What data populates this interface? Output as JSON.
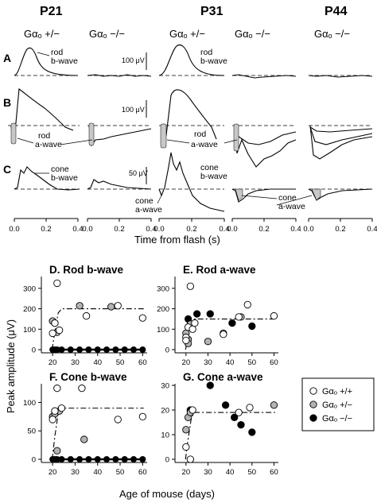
{
  "top": {
    "ages": [
      "P21",
      "P31",
      "P44"
    ],
    "genotypes": [
      "Gαₒ +/−",
      "Gαₒ −/−",
      "Gαₒ +/−",
      "Gαₒ −/−",
      "Gαₒ −/−"
    ],
    "rows": [
      "A",
      "B",
      "C"
    ],
    "scales": [
      "100 μV",
      "100 μV",
      "50 μV"
    ],
    "labels": {
      "rod_b_1": "rod",
      "rod_b_2": "b-wave",
      "rod_b2_1": "rod",
      "rod_b2_2": "b-wave",
      "rod_a_1": "rod",
      "rod_a_2": "a-wave",
      "rod_a2_1": "rod",
      "rod_a2_2": "a-wave",
      "cone_b_1": "cone",
      "cone_b_2": "b-wave",
      "cone_b2_1": "cone",
      "cone_b2_2": "b-wave",
      "cone_a_1": "cone",
      "cone_a_2": "a-wave",
      "cone_a2_1": "cone",
      "cone_a2_2": "a-wave"
    },
    "ticks": [
      "0.0",
      "0.2",
      "0.4"
    ],
    "xlabel": "Time from flash (s)"
  },
  "panels": [
    {
      "id": "D",
      "title": "D. Rod b-wave",
      "ylim": [
        0,
        350
      ],
      "yticks": [
        "0",
        "100",
        "200",
        "300"
      ],
      "plus_plus": [
        [
          20,
          80
        ],
        [
          21,
          130
        ],
        [
          22,
          325
        ],
        [
          23,
          95
        ],
        [
          35,
          165
        ],
        [
          49,
          215
        ],
        [
          60,
          155
        ]
      ],
      "plus_minus": [
        [
          20,
          140
        ],
        [
          21,
          130
        ],
        [
          22,
          85
        ],
        [
          32,
          215
        ],
        [
          46,
          210
        ]
      ],
      "fit_plateau": 200
    },
    {
      "id": "E",
      "title": "E. Rod a-wave",
      "ylim": [
        0,
        350
      ],
      "yticks": [
        "0",
        "100",
        "200",
        "300"
      ],
      "plus_plus": [
        [
          20,
          60
        ],
        [
          20,
          45
        ],
        [
          21,
          110
        ],
        [
          22,
          310
        ],
        [
          23,
          100
        ],
        [
          24,
          130
        ],
        [
          37,
          75
        ],
        [
          44,
          160
        ],
        [
          48,
          220
        ],
        [
          60,
          165
        ]
      ],
      "plus_minus": [
        [
          20,
          80
        ],
        [
          21,
          50
        ],
        [
          21,
          30
        ],
        [
          22,
          125
        ],
        [
          30,
          40
        ],
        [
          37,
          80
        ],
        [
          45,
          160
        ]
      ],
      "minus_minus": [
        [
          21,
          150
        ],
        [
          25,
          175
        ],
        [
          31,
          175
        ],
        [
          41,
          130
        ],
        [
          50,
          115
        ]
      ],
      "fit_plateau": 150
    },
    {
      "id": "F",
      "title": "F. Cone b-wave",
      "ylim": [
        0,
        130
      ],
      "yticks": [
        "0",
        "50",
        "100"
      ],
      "plus_plus": [
        [
          20,
          70
        ],
        [
          21,
          85
        ],
        [
          22,
          125
        ],
        [
          24,
          90
        ],
        [
          33,
          125
        ],
        [
          49,
          70
        ],
        [
          60,
          75
        ]
      ],
      "plus_minus": [
        [
          20,
          75
        ],
        [
          21,
          80
        ],
        [
          22,
          15
        ],
        [
          23,
          85
        ],
        [
          34,
          35
        ]
      ],
      "fit_plateau": 90
    },
    {
      "id": "G",
      "title": "G. Cone a-wave",
      "ylim": [
        0,
        30
      ],
      "yticks": [
        "0",
        "10",
        "20",
        "30"
      ],
      "plus_plus": [
        [
          20,
          5
        ],
        [
          22,
          0
        ],
        [
          23,
          20
        ],
        [
          44,
          19
        ],
        [
          49,
          21
        ]
      ],
      "plus_minus": [
        [
          20,
          12
        ],
        [
          21,
          17
        ],
        [
          22,
          19
        ],
        [
          60,
          22
        ]
      ],
      "minus_minus": [
        [
          22,
          20
        ],
        [
          31,
          30
        ],
        [
          38,
          22
        ],
        [
          42,
          17
        ],
        [
          45,
          14
        ],
        [
          50,
          11
        ]
      ],
      "fit_plateau": 19
    }
  ],
  "bottom": {
    "xticks": [
      "20",
      "30",
      "40",
      "50",
      "60"
    ],
    "xlabel": "Age of mouse (days)",
    "ylabel": "Peak amplitude (μV)",
    "legend": [
      "Gαₒ +/+",
      "Gαₒ +/−",
      "Gαₒ −/−"
    ],
    "legend_colors": [
      "#ffffff",
      "#b3b3b3",
      "#000000"
    ]
  }
}
